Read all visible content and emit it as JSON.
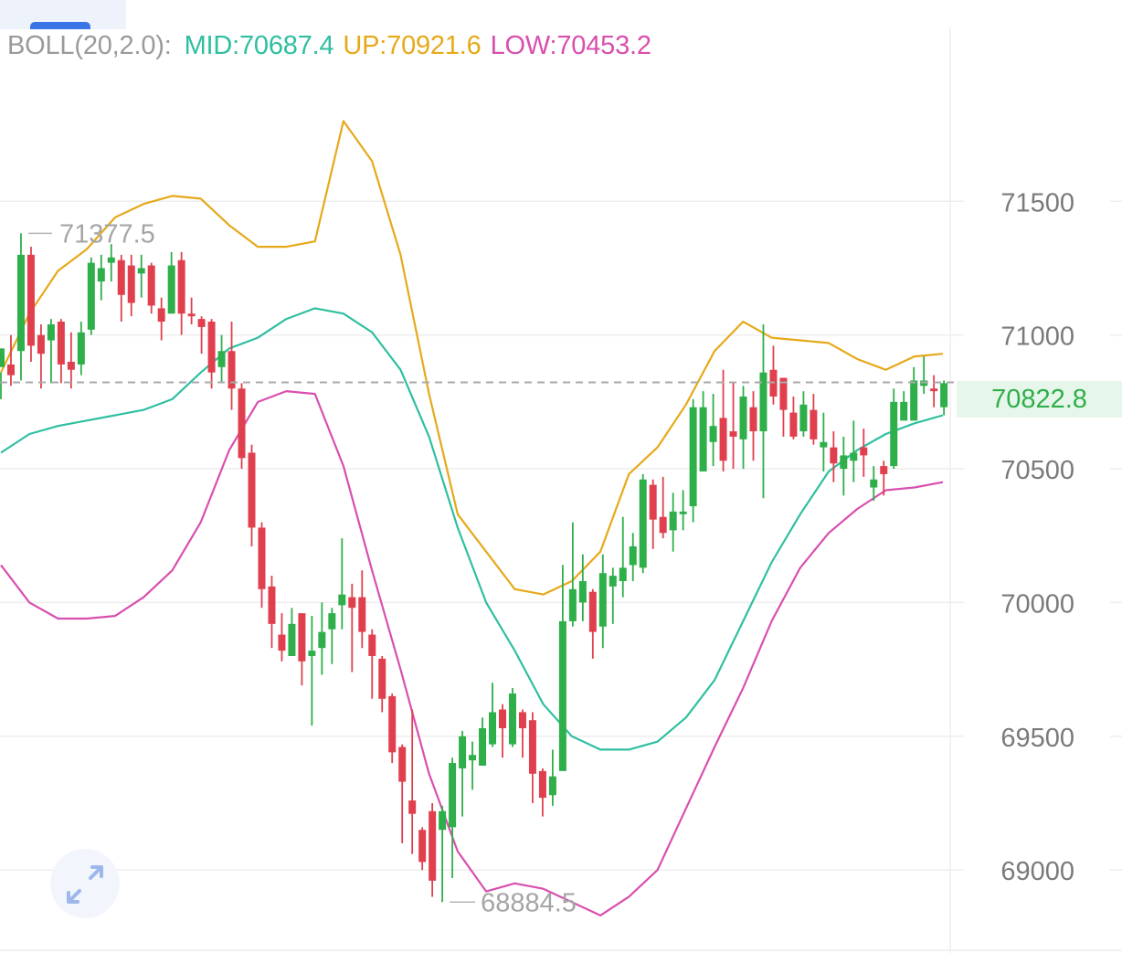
{
  "chart_data": {
    "type": "candlestick",
    "indicator": {
      "name": "BOLL(20,2.0):",
      "mid_label": "MID:70687.4",
      "up_label": "UP:70921.6",
      "low_label": "LOW:70453.2",
      "colors": {
        "mid": "#2fbfa0",
        "up": "#e6a91a",
        "low": "#d94fae"
      }
    },
    "colors": {
      "up_candle": "#2eaf4a",
      "down_candle": "#e0404e",
      "grid": "#eeeeee",
      "axis_text": "#7a7a7a"
    },
    "y_ticks": [
      71500,
      71000,
      70500,
      70000,
      69500,
      69000
    ],
    "y_tick_labels": [
      "71500",
      "71000",
      "70500",
      "70000",
      "69500",
      "69000"
    ],
    "ylim": [
      68700,
      72150
    ],
    "current_price": 70822.8,
    "current_price_label": "70822.8",
    "high_marker_label": "71377.5",
    "low_marker_label": "68884.5",
    "candles": [
      [
        70880,
        70950,
        70860,
        70760
      ],
      [
        70890,
        70850,
        71000,
        70810
      ],
      [
        70940,
        71300,
        71380,
        70830
      ],
      [
        71300,
        70960,
        71330,
        70900
      ],
      [
        71000,
        70930,
        71040,
        70800
      ],
      [
        70980,
        71040,
        71060,
        70820
      ],
      [
        71050,
        70890,
        71060,
        70820
      ],
      [
        70900,
        70870,
        71010,
        70800
      ],
      [
        70890,
        71010,
        71050,
        70850
      ],
      [
        71020,
        71270,
        71290,
        71000
      ],
      [
        71200,
        71250,
        71300,
        71130
      ],
      [
        71270,
        71290,
        71340,
        71200
      ],
      [
        71280,
        71150,
        71300,
        71050
      ],
      [
        71260,
        71120,
        71300,
        71070
      ],
      [
        71230,
        71250,
        71300,
        71140
      ],
      [
        71260,
        71110,
        71270,
        71080
      ],
      [
        71100,
        71050,
        71140,
        70980
      ],
      [
        71080,
        71260,
        71310,
        71080
      ],
      [
        71280,
        71080,
        71310,
        71000
      ],
      [
        71080,
        71070,
        71140,
        71040
      ],
      [
        71060,
        71030,
        71070,
        70930
      ],
      [
        71050,
        70860,
        71060,
        70800
      ],
      [
        70880,
        70940,
        71000,
        70820
      ],
      [
        70940,
        70800,
        71050,
        70720
      ],
      [
        70800,
        70540,
        70820,
        70500
      ],
      [
        70560,
        70280,
        70590,
        70210
      ],
      [
        70280,
        70050,
        70300,
        69980
      ],
      [
        70060,
        69920,
        70100,
        69830
      ],
      [
        69880,
        69820,
        69960,
        69780
      ],
      [
        69800,
        69920,
        69980,
        69800
      ],
      [
        69960,
        69780,
        69960,
        69690
      ],
      [
        69800,
        69820,
        69950,
        69540
      ],
      [
        69830,
        69890,
        70000,
        69730
      ],
      [
        69900,
        69960,
        69980,
        69770
      ],
      [
        69990,
        70030,
        70240,
        69900
      ],
      [
        70020,
        69980,
        70070,
        69740
      ],
      [
        70020,
        69890,
        70120,
        69830
      ],
      [
        69880,
        69800,
        69900,
        69640
      ],
      [
        69790,
        69640,
        69800,
        69590
      ],
      [
        69650,
        69440,
        69660,
        69400
      ],
      [
        69460,
        69330,
        69470,
        69100
      ],
      [
        69260,
        69210,
        69600,
        69060
      ],
      [
        69150,
        69030,
        69160,
        69000
      ],
      [
        69220,
        68960,
        69250,
        68900
      ],
      [
        69150,
        69220,
        69240,
        68880
      ],
      [
        69160,
        69400,
        69420,
        68970
      ],
      [
        69380,
        69500,
        69520,
        69200
      ],
      [
        69410,
        69430,
        69480,
        69300
      ],
      [
        69390,
        69530,
        69570,
        69420
      ],
      [
        69470,
        69590,
        69700,
        69460
      ],
      [
        69600,
        69530,
        69620,
        69420
      ],
      [
        69470,
        69660,
        69680,
        69460
      ],
      [
        69590,
        69530,
        69600,
        69420
      ],
      [
        69560,
        69360,
        69590,
        69250
      ],
      [
        69370,
        69270,
        69380,
        69200
      ],
      [
        69280,
        69350,
        69450,
        69240
      ],
      [
        69370,
        69930,
        70140,
        69380
      ],
      [
        69930,
        70050,
        70300,
        69910
      ],
      [
        70000,
        70080,
        70180,
        69930
      ],
      [
        70040,
        69890,
        70050,
        69790
      ],
      [
        69910,
        70110,
        70180,
        69830
      ],
      [
        70060,
        70100,
        70130,
        69920
      ],
      [
        70080,
        70130,
        70320,
        70020
      ],
      [
        70140,
        70210,
        70260,
        70080
      ],
      [
        70130,
        70460,
        70480,
        70110
      ],
      [
        70440,
        70310,
        70460,
        70200
      ],
      [
        70320,
        70260,
        70470,
        70240
      ],
      [
        70270,
        70340,
        70410,
        70190
      ],
      [
        70330,
        70340,
        70420,
        70270
      ],
      [
        70360,
        70730,
        70760,
        70300
      ],
      [
        70490,
        70730,
        70790,
        70490
      ],
      [
        70600,
        70660,
        70780,
        70510
      ],
      [
        70690,
        70530,
        70870,
        70490
      ],
      [
        70640,
        70620,
        70820,
        70500
      ],
      [
        70610,
        70770,
        70810,
        70500
      ],
      [
        70730,
        70640,
        70790,
        70530
      ],
      [
        70640,
        70860,
        71040,
        70390
      ],
      [
        70870,
        70770,
        70960,
        70740
      ],
      [
        70840,
        70720,
        70840,
        70620
      ],
      [
        70710,
        70620,
        70770,
        70610
      ],
      [
        70640,
        70740,
        70790,
        70620
      ],
      [
        70720,
        70610,
        70780,
        70590
      ],
      [
        70580,
        70600,
        70710,
        70490
      ],
      [
        70580,
        70520,
        70640,
        70450
      ],
      [
        70500,
        70550,
        70620,
        70400
      ],
      [
        70530,
        70560,
        70680,
        70450
      ],
      [
        70580,
        70550,
        70650,
        70470
      ],
      [
        70430,
        70460,
        70510,
        70380
      ],
      [
        70510,
        70480,
        70530,
        70400
      ],
      [
        70510,
        70750,
        70800,
        70500
      ],
      [
        70680,
        70750,
        70790,
        70690
      ],
      [
        70680,
        70830,
        70880,
        70680
      ],
      [
        70810,
        70830,
        70920,
        70780
      ],
      [
        70800,
        70790,
        70850,
        70730
      ],
      [
        70730,
        70820,
        70830,
        70700
      ]
    ],
    "mid_line": [
      70560,
      70630,
      70660,
      70680,
      70700,
      70720,
      70760,
      70860,
      70950,
      70990,
      71060,
      71100,
      71080,
      71010,
      70870,
      70620,
      70280,
      70000,
      69820,
      69620,
      69500,
      69450,
      69450,
      69480,
      69570,
      69710,
      69930,
      70150,
      70330,
      70490,
      70570,
      70630,
      70670,
      70700
    ],
    "up_line": [
      70860,
      71080,
      71240,
      71320,
      71440,
      71490,
      71520,
      71510,
      71410,
      71330,
      71330,
      71350,
      71800,
      71650,
      71300,
      70780,
      70330,
      70190,
      70050,
      70030,
      70080,
      70190,
      70480,
      70580,
      70740,
      70940,
      71050,
      70990,
      70980,
      70970,
      70910,
      70870,
      70920,
      70930
    ],
    "low_line": [
      70140,
      70000,
      69940,
      69940,
      69950,
      70020,
      70120,
      70300,
      70570,
      70750,
      70790,
      70780,
      70510,
      70120,
      69750,
      69360,
      69070,
      68920,
      68950,
      68930,
      68880,
      68830,
      68900,
      69000,
      69230,
      69460,
      69680,
      69930,
      70130,
      70260,
      70350,
      70420,
      70430,
      70450
    ]
  },
  "controls": {
    "expand_icon": "expand-arrows-icon"
  }
}
